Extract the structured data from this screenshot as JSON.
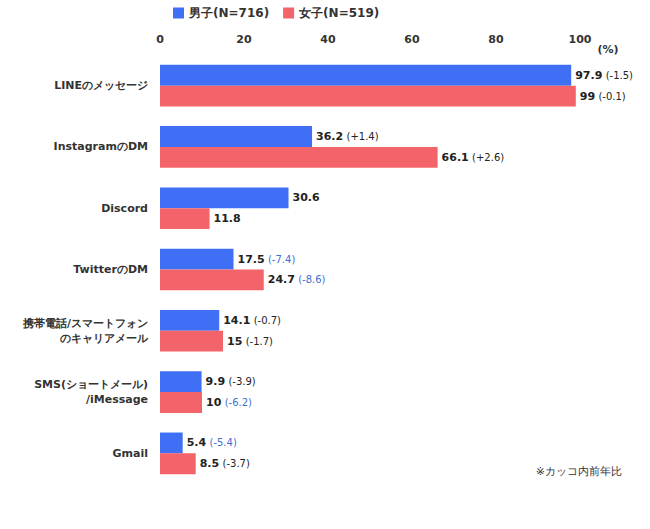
{
  "chart_data": {
    "type": "bar",
    "orientation": "horizontal",
    "categories": [
      "LINEのメッセージ",
      "InstagramのDM",
      "Discord",
      "TwitterのDM",
      "携帯電話/スマートフォン\nのキャリアメール",
      "SMS(ショートメール)\n/iMessage",
      "Gmail"
    ],
    "series": [
      {
        "name": "男子(N=716)",
        "color": "#3f6ff5",
        "values": [
          97.9,
          36.2,
          30.6,
          17.5,
          14.1,
          9.9,
          5.4
        ],
        "changes": [
          -1.5,
          1.4,
          null,
          -7.4,
          -0.7,
          -3.9,
          -5.4
        ],
        "change_labels": [
          "(-1.5)",
          "(+1.4)",
          null,
          "(-7.4)",
          "(-0.7)",
          "(-3.9)",
          "(-5.4)"
        ]
      },
      {
        "name": "女子(N=519)",
        "color": "#f2636a",
        "values": [
          99.0,
          66.1,
          11.8,
          24.7,
          15.0,
          10.0,
          8.5
        ],
        "changes": [
          -0.1,
          2.6,
          null,
          -8.6,
          -1.7,
          -6.2,
          -3.7
        ],
        "change_labels": [
          "(-0.1)",
          "(+2.6)",
          null,
          "(-8.6)",
          "(-1.7)",
          "(-6.2)",
          "(-3.7)"
        ]
      }
    ],
    "xlabel": "(%)",
    "xlim": [
      0,
      100
    ],
    "xticks": [
      0,
      20,
      40,
      60,
      80,
      100
    ],
    "grid": false,
    "legend": "top",
    "data_labels": true,
    "annotation": "※カッコ内前年比"
  }
}
